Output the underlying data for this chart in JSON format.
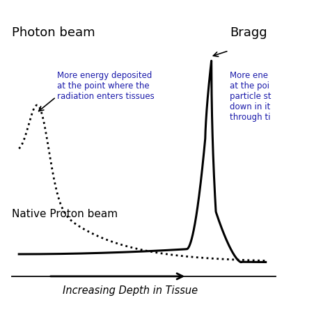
{
  "xlabel": "Increasing Depth in Tissue",
  "background_color": "#ffffff",
  "photon_label": "Photon beam",
  "proton_label": "Native Proton beam",
  "bragg_label": "Bragg",
  "photon_annotation": "More energy deposited\nat the point where the\nradiation enters tissues",
  "bragg_annotation": "More ene\nat the poi\nparticle st\ndown in it\nthrough ti",
  "line_color": "#000000",
  "annotation_color": "#1a1aaa",
  "figsize": [
    4.74,
    4.74
  ],
  "dpi": 100
}
